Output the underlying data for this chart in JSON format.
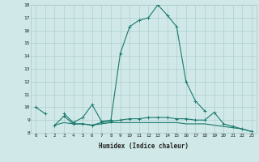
{
  "title": "",
  "xlabel": "Humidex (Indice chaleur)",
  "x_values": [
    0,
    1,
    2,
    3,
    4,
    5,
    6,
    7,
    8,
    9,
    10,
    11,
    12,
    13,
    14,
    15,
    16,
    17,
    18,
    19,
    20,
    21,
    22,
    23
  ],
  "line1_y": [
    10,
    9.5,
    null,
    9.5,
    8.8,
    9.2,
    10.2,
    8.9,
    9.0,
    14.2,
    16.3,
    16.8,
    17.0,
    18.0,
    17.2,
    16.3,
    12.0,
    10.5,
    9.7,
    null,
    null,
    null,
    null,
    null
  ],
  "line2_y": [
    null,
    null,
    8.6,
    9.3,
    8.7,
    8.7,
    8.6,
    8.8,
    8.9,
    9.0,
    9.1,
    9.1,
    9.2,
    9.2,
    9.2,
    9.1,
    9.1,
    9.0,
    9.0,
    9.6,
    8.7,
    8.5,
    8.3,
    8.1
  ],
  "line3_y": [
    null,
    null,
    8.6,
    8.8,
    8.7,
    8.7,
    8.6,
    8.7,
    8.8,
    8.8,
    8.8,
    8.8,
    8.8,
    8.8,
    8.8,
    8.8,
    8.7,
    8.7,
    8.7,
    8.6,
    8.5,
    8.4,
    8.3,
    8.1
  ],
  "line_color": "#1a7a6e",
  "bg_color": "#d0e8e8",
  "grid_color": "#a8c8c8",
  "ylim": [
    8,
    18
  ],
  "yticks": [
    8,
    9,
    10,
    11,
    12,
    13,
    14,
    15,
    16,
    17,
    18
  ],
  "xlim": [
    -0.5,
    23.5
  ]
}
